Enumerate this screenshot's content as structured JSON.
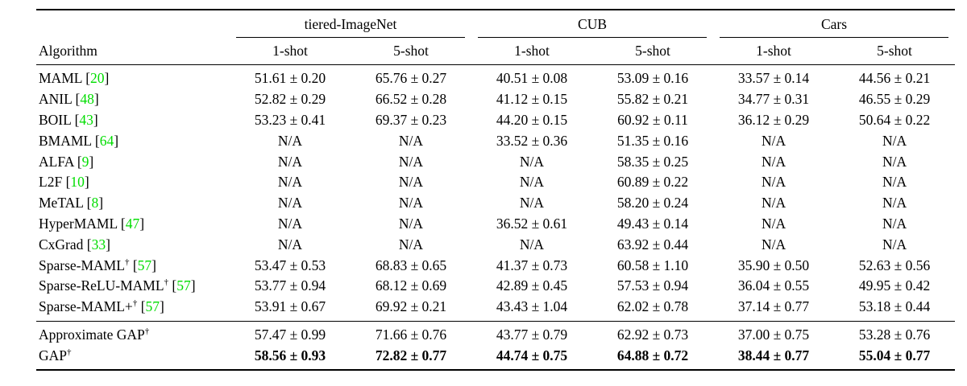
{
  "colors": {
    "citation_green": "#00dd00",
    "text": "#000000",
    "rule": "#000000"
  },
  "table": {
    "algorithm_header": "Algorithm",
    "dagger_symbol": "†",
    "plus_minus_symbol": "±",
    "groups": [
      {
        "label": "tiered-ImageNet"
      },
      {
        "label": "CUB"
      },
      {
        "label": "Cars"
      }
    ],
    "subheaders": [
      "1-shot",
      "5-shot",
      "1-shot",
      "5-shot",
      "1-shot",
      "5-shot"
    ],
    "main_rows": [
      {
        "name": "MAML",
        "dagger": false,
        "cite": "20",
        "bold": false,
        "values": [
          "51.61 ± 0.20",
          "65.76 ± 0.27",
          "40.51 ± 0.08",
          "53.09 ± 0.16",
          "33.57 ± 0.14",
          "44.56 ± 0.21"
        ]
      },
      {
        "name": "ANIL",
        "dagger": false,
        "cite": "48",
        "bold": false,
        "values": [
          "52.82 ± 0.29",
          "66.52 ± 0.28",
          "41.12 ± 0.15",
          "55.82 ± 0.21",
          "34.77 ± 0.31",
          "46.55 ± 0.29"
        ]
      },
      {
        "name": "BOIL",
        "dagger": false,
        "cite": "43",
        "bold": false,
        "values": [
          "53.23 ± 0.41",
          "69.37 ± 0.23",
          "44.20 ± 0.15",
          "60.92 ± 0.11",
          "36.12 ± 0.29",
          "50.64 ± 0.22"
        ]
      },
      {
        "name": "BMAML",
        "dagger": false,
        "cite": "64",
        "bold": false,
        "values": [
          "N/A",
          "N/A",
          "33.52 ± 0.36",
          "51.35 ± 0.16",
          "N/A",
          "N/A"
        ]
      },
      {
        "name": "ALFA",
        "dagger": false,
        "cite": "9",
        "bold": false,
        "values": [
          "N/A",
          "N/A",
          "N/A",
          "58.35 ± 0.25",
          "N/A",
          "N/A"
        ]
      },
      {
        "name": "L2F",
        "dagger": false,
        "cite": "10",
        "bold": false,
        "values": [
          "N/A",
          "N/A",
          "N/A",
          "60.89 ± 0.22",
          "N/A",
          "N/A"
        ]
      },
      {
        "name": "MeTAL",
        "dagger": false,
        "cite": "8",
        "bold": false,
        "values": [
          "N/A",
          "N/A",
          "N/A",
          "58.20 ± 0.24",
          "N/A",
          "N/A"
        ]
      },
      {
        "name": "HyperMAML",
        "dagger": false,
        "cite": "47",
        "bold": false,
        "values": [
          "N/A",
          "N/A",
          "36.52 ± 0.61",
          "49.43 ± 0.14",
          "N/A",
          "N/A"
        ]
      },
      {
        "name": "CxGrad",
        "dagger": false,
        "cite": "33",
        "bold": false,
        "values": [
          "N/A",
          "N/A",
          "N/A",
          "63.92 ± 0.44",
          "N/A",
          "N/A"
        ]
      },
      {
        "name": "Sparse-MAML",
        "dagger": true,
        "cite": "57",
        "bold": false,
        "values": [
          "53.47 ± 0.53",
          "68.83 ± 0.65",
          "41.37 ± 0.73",
          "60.58 ± 1.10",
          "35.90 ± 0.50",
          "52.63 ± 0.56"
        ]
      },
      {
        "name": "Sparse-ReLU-MAML",
        "dagger": true,
        "cite": "57",
        "bold": false,
        "values": [
          "53.77 ± 0.94",
          "68.12 ± 0.69",
          "42.89 ± 0.45",
          "57.53 ± 0.94",
          "36.04 ± 0.55",
          "49.95 ± 0.42"
        ]
      },
      {
        "name": "Sparse-MAML+",
        "dagger": true,
        "cite": "57",
        "bold": false,
        "values": [
          "53.91 ± 0.67",
          "69.92 ± 0.21",
          "43.43 ± 1.04",
          "62.02 ± 0.78",
          "37.14 ± 0.77",
          "53.18 ± 0.44"
        ]
      }
    ],
    "summary_rows": [
      {
        "name": "Approximate GAP",
        "dagger": true,
        "cite": null,
        "bold": false,
        "values": [
          "57.47 ± 0.99",
          "71.66 ± 0.76",
          "43.77 ± 0.79",
          "62.92 ± 0.73",
          "37.00 ± 0.75",
          "53.28 ± 0.76"
        ]
      },
      {
        "name": "GAP",
        "dagger": true,
        "cite": null,
        "bold": true,
        "values": [
          "58.56 ± 0.93",
          "72.82 ± 0.77",
          "44.74 ± 0.75",
          "64.88 ± 0.72",
          "38.44 ± 0.77",
          "55.04 ± 0.77"
        ]
      }
    ]
  }
}
